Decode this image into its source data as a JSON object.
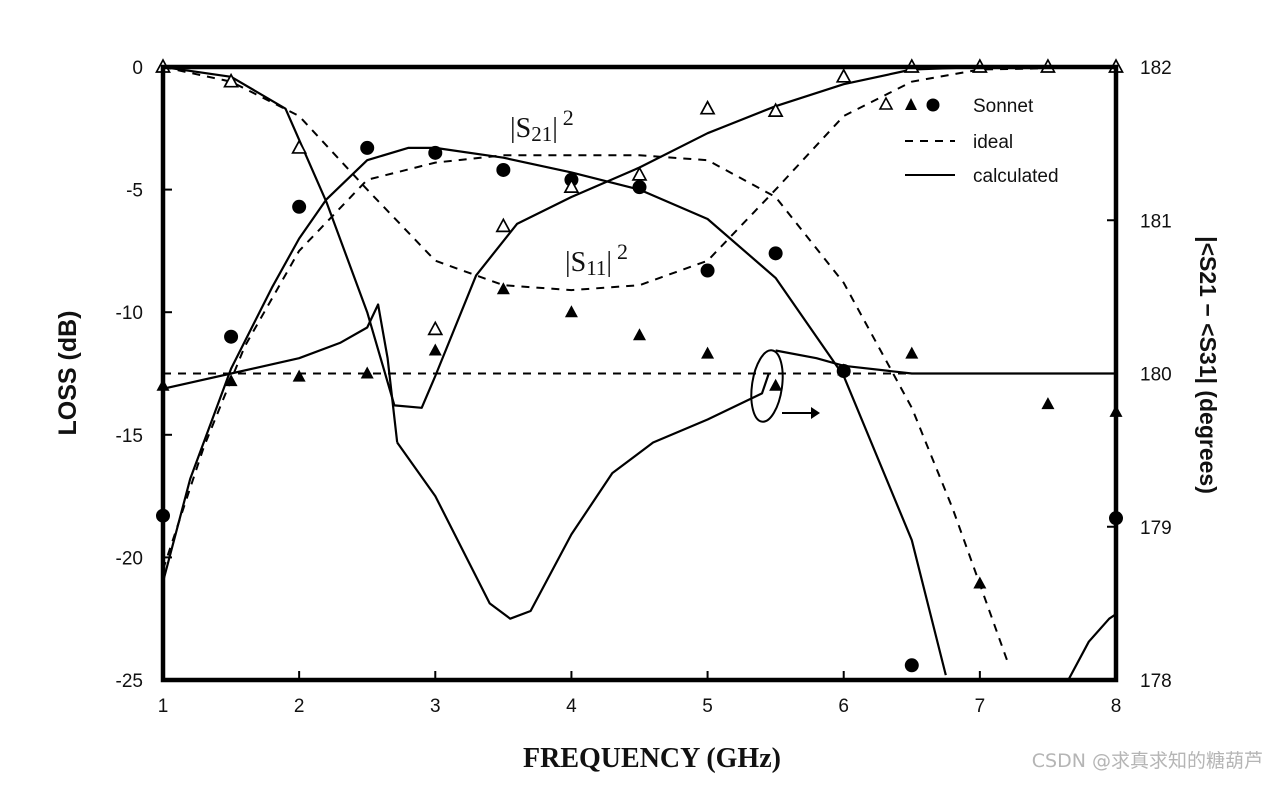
{
  "chart_data": {
    "type": "line",
    "x_label": "FREQUENCY (GHz)",
    "y_label": "LOSS (dB)",
    "y2_label": "|<S21 − <S31| (degrees)",
    "xlim": [
      1,
      8
    ],
    "ylim": [
      -25,
      0
    ],
    "y2lim": [
      178,
      182
    ],
    "x_ticks": [
      "1",
      "2",
      "3",
      "4",
      "5",
      "6",
      "7",
      "8"
    ],
    "x_tick_values": [
      1,
      2,
      3,
      4,
      5,
      6,
      7,
      8
    ],
    "y_ticks": [
      "0",
      "-5",
      "-10",
      "-15",
      "-20",
      "-25"
    ],
    "y_tick_values": [
      0,
      -5,
      -10,
      -15,
      -20,
      -25
    ],
    "y2_ticks": [
      "182",
      "181",
      "180",
      "179",
      "178"
    ],
    "y2_tick_values": [
      182,
      181,
      180,
      179,
      178
    ],
    "annotations": {
      "s21": {
        "base": "|S",
        "sub": "21",
        "close": "|",
        "sup": "2",
        "x": 4.0,
        "y": -2.8
      },
      "s11": {
        "base": "|S",
        "sub": "11",
        "close": "|",
        "sup": "2",
        "x": 4.2,
        "y": -8.4
      }
    },
    "legend": {
      "position": "top-right",
      "entries": [
        {
          "label": "Sonnet",
          "style": "markers"
        },
        {
          "label": "ideal",
          "style": "dashed"
        },
        {
          "label": "calculated",
          "style": "solid"
        }
      ]
    },
    "series": [
      {
        "name": "|S21|^2 calculated",
        "style": "solid",
        "axis": "left",
        "x": [
          1.0,
          1.2,
          1.5,
          1.8,
          2.0,
          2.2,
          2.5,
          2.8,
          3.0,
          3.5,
          4.0,
          4.5,
          5.0,
          5.5,
          6.0,
          6.5,
          6.75
        ],
        "y": [
          -21.0,
          -16.8,
          -12.3,
          -9.0,
          -7.0,
          -5.4,
          -3.8,
          -3.3,
          -3.3,
          -3.7,
          -4.3,
          -5.0,
          -6.2,
          -8.6,
          -12.6,
          -19.3,
          -24.8
        ]
      },
      {
        "name": "|S21|^2 ideal",
        "style": "dashed",
        "axis": "left",
        "x": [
          1.0,
          1.3,
          1.6,
          2.0,
          2.5,
          3.0,
          3.5,
          4.0,
          4.5,
          5.0,
          5.5,
          6.0,
          6.5,
          6.8,
          7.0,
          7.2
        ],
        "y": [
          -20.5,
          -15.5,
          -11.4,
          -7.5,
          -4.6,
          -3.9,
          -3.6,
          -3.6,
          -3.6,
          -3.8,
          -5.3,
          -8.8,
          -13.9,
          -18.0,
          -21.1,
          -24.2
        ]
      },
      {
        "name": "|S11|^2 calculated",
        "style": "solid",
        "axis": "left",
        "x": [
          1.0,
          1.5,
          1.9,
          2.2,
          2.5,
          2.7,
          2.9,
          3.0,
          3.3,
          3.6,
          4.0,
          4.5,
          5.0,
          5.5,
          6.0,
          6.5,
          7.0
        ],
        "y": [
          0.0,
          -0.4,
          -1.7,
          -5.5,
          -10.0,
          -13.8,
          -13.9,
          -12.6,
          -8.5,
          -6.4,
          -5.3,
          -4.1,
          -2.7,
          -1.6,
          -0.7,
          -0.1,
          0.0
        ]
      },
      {
        "name": "|S11|^2 ideal",
        "style": "dashed",
        "axis": "left",
        "x": [
          1.0,
          1.5,
          2.0,
          2.5,
          3.0,
          3.5,
          4.0,
          4.5,
          5.0,
          5.5,
          6.0,
          6.5,
          7.0,
          8.0
        ],
        "y": [
          0.0,
          -0.6,
          -2.0,
          -5.0,
          -7.9,
          -8.9,
          -9.1,
          -8.9,
          -7.9,
          -5.0,
          -2.0,
          -0.6,
          -0.1,
          0.0
        ]
      },
      {
        "name": "phase calculated (left branch)",
        "style": "solid",
        "axis": "right",
        "x": [
          1.0,
          1.5,
          2.0,
          2.3,
          2.5,
          2.58,
          2.65,
          2.72
        ],
        "y": [
          179.9,
          180.0,
          180.1,
          180.2,
          180.3,
          180.45,
          180.1,
          179.55
        ]
      },
      {
        "name": "phase calculated (dip)",
        "style": "solid",
        "axis": "right",
        "x": [
          2.72,
          3.0,
          3.2,
          3.4,
          3.55,
          3.7,
          4.0,
          4.3,
          4.6,
          5.0,
          5.4,
          5.45
        ],
        "y": [
          179.55,
          179.2,
          178.85,
          178.5,
          178.4,
          178.45,
          178.95,
          179.35,
          179.55,
          179.7,
          179.87,
          180.0
        ]
      },
      {
        "name": "phase calculated (right branch)",
        "style": "solid",
        "axis": "right",
        "x": [
          5.5,
          5.8,
          6.0,
          6.5,
          7.0,
          7.5,
          8.0
        ],
        "y": [
          180.15,
          180.1,
          180.05,
          180.0,
          180.0,
          180.0,
          180.0
        ]
      },
      {
        "name": "phase calculated (far right)",
        "style": "solid",
        "axis": "right",
        "x": [
          7.65,
          7.8,
          7.95,
          8.0
        ],
        "y": [
          178.0,
          178.25,
          178.4,
          178.43
        ]
      },
      {
        "name": "phase ideal",
        "style": "dashed",
        "axis": "right",
        "x": [
          1.0,
          8.0
        ],
        "y": [
          180.0,
          180.0
        ]
      },
      {
        "name": "|S21|^2 Sonnet",
        "style": "filled-circle",
        "axis": "left",
        "x": [
          1.0,
          1.5,
          2.0,
          2.5,
          3.0,
          3.5,
          4.0,
          4.5,
          5.0,
          5.5,
          6.0,
          6.5,
          8.0
        ],
        "y": [
          -18.3,
          -11.0,
          -5.7,
          -3.3,
          -3.5,
          -4.2,
          -4.6,
          -4.9,
          -8.3,
          -7.6,
          -12.4,
          -24.4,
          -18.4
        ]
      },
      {
        "name": "|S11|^2 Sonnet",
        "style": "open-triangle",
        "axis": "left",
        "x": [
          1.0,
          1.5,
          2.0,
          3.0,
          3.5,
          4.0,
          4.5,
          5.0,
          5.5,
          6.0,
          6.5,
          7.0,
          7.5,
          8.0
        ],
        "y": [
          0.0,
          -0.6,
          -3.3,
          -10.7,
          -6.5,
          -4.9,
          -4.4,
          -1.7,
          -1.8,
          -0.4,
          0.0,
          0.0,
          0.0,
          0.0
        ]
      },
      {
        "name": "phase Sonnet",
        "style": "filled-triangle",
        "axis": "right",
        "x": [
          1.0,
          1.5,
          2.0,
          2.5,
          3.0,
          3.5,
          4.0,
          4.5,
          5.0,
          5.5,
          6.0,
          6.5,
          7.0,
          7.5,
          8.0
        ],
        "y": [
          179.92,
          179.95,
          179.98,
          180.0,
          180.15,
          180.55,
          180.4,
          180.25,
          180.13,
          179.92,
          180.02,
          180.13,
          178.63,
          179.8,
          179.75
        ]
      }
    ]
  },
  "watermark": "CSDN @求真求知的糖葫芦"
}
